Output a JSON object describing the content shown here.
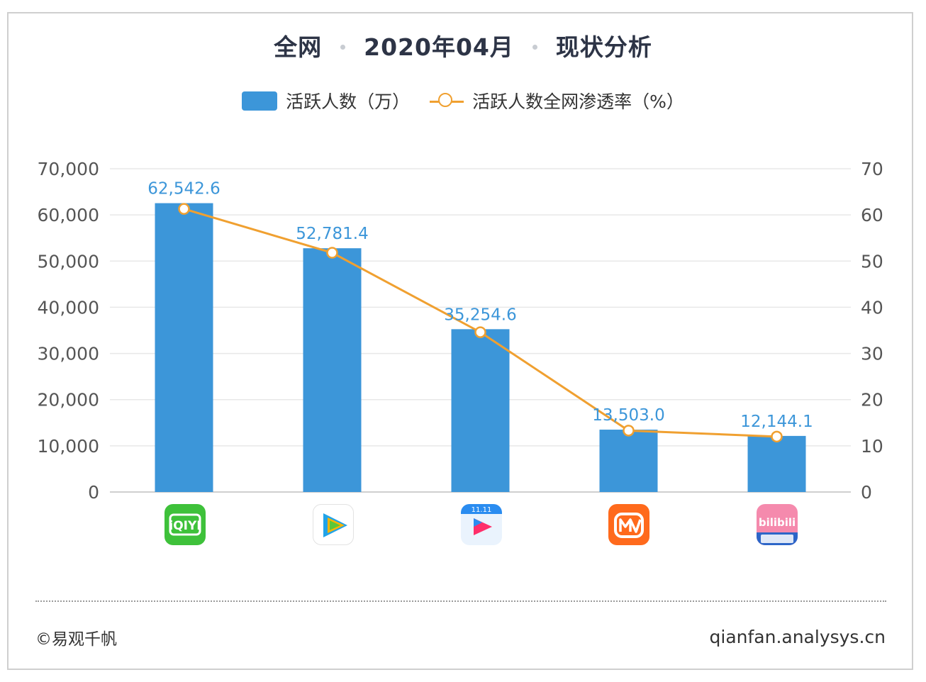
{
  "title": {
    "part1": "全网",
    "part2": "2020年04月",
    "part3": "现状分析"
  },
  "legend": {
    "bar_label": "活跃人数（万）",
    "line_label": "活跃人数全网渗透率（%）"
  },
  "colors": {
    "bar": "#3c96d9",
    "line": "#f0a030",
    "label": "#3c96d9"
  },
  "footer": {
    "copyright": "©易观千帆",
    "site": "qianfan.analysys.cn"
  },
  "chart_data": {
    "type": "bar",
    "categories": [
      "iqiyi-icon",
      "tencent-video-icon",
      "youku-icon",
      "mango-tv-icon",
      "bilibili-icon"
    ],
    "series": [
      {
        "name": "活跃人数（万）",
        "type": "bar",
        "axis": "left",
        "values": [
          62542.6,
          52781.4,
          35254.6,
          13503.0,
          12144.1
        ],
        "labels": [
          "62,542.6",
          "52,781.4",
          "35,254.6",
          "13,503.0",
          "12,144.1"
        ]
      },
      {
        "name": "活跃人数全网渗透率（%）",
        "type": "line",
        "axis": "right",
        "values": [
          61.3,
          51.8,
          34.6,
          13.3,
          12.0
        ]
      }
    ],
    "y_left": {
      "ylim": [
        0,
        70000
      ],
      "ticks": [
        0,
        10000,
        20000,
        30000,
        40000,
        50000,
        60000,
        70000
      ],
      "tick_labels": [
        "0",
        "10,000",
        "20,000",
        "30,000",
        "40,000",
        "50,000",
        "60,000",
        "70,000"
      ]
    },
    "y_right": {
      "ylim": [
        0,
        70
      ],
      "ticks": [
        0,
        10,
        20,
        30,
        40,
        50,
        60,
        70
      ],
      "tick_labels": [
        "0",
        "10",
        "20",
        "30",
        "40",
        "50",
        "60",
        "70"
      ]
    },
    "grid": true,
    "legend_position": "top-center"
  }
}
